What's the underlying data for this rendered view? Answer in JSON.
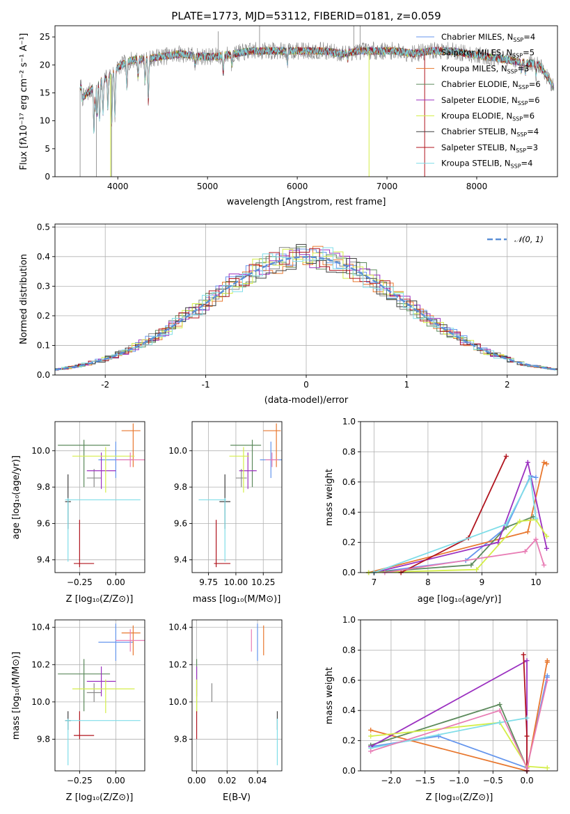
{
  "colors": {
    "Chabrier MILES": "#6495ed",
    "Salpeter MILES": "#8a8a8a",
    "Kroupa MILES": "#e8772e",
    "Chabrier ELODIE": "#5c8a5c",
    "Salpeter ELODIE": "#9b30c0",
    "Kroupa ELODIE": "#d4ee48",
    "Chabrier STELIB": "#3d3d3d",
    "Salpeter STELIB": "#b0141e",
    "Kroupa STELIB": "#7fdde8"
  },
  "chart_data": [
    {
      "id": "spectrum",
      "type": "line",
      "title": "PLATE=1773, MJD=53112, FIBERID=0181, z=0.059",
      "xlabel": "wavelength [Angstrom, rest frame]",
      "ylabel": "Flux [fλ10⁻¹⁷ erg cm⁻² s⁻¹ A⁻¹]",
      "xlim": [
        3300,
        8900
      ],
      "ylim": [
        0,
        27
      ],
      "xticks": [
        4000,
        5000,
        6000,
        7000,
        8000
      ],
      "yticks": [
        0,
        5,
        10,
        15,
        20,
        25
      ],
      "grid": false,
      "legend_position": "top-right",
      "legend": [
        {
          "key": "Chabrier MILES",
          "label": "Chabrier MILES, N",
          "sub": "SSP",
          "tail": "=4"
        },
        {
          "key": "Salpeter MILES",
          "label": "Salpeter MILES, N",
          "sub": "SSP",
          "tail": "=5"
        },
        {
          "key": "Kroupa MILES",
          "label": "Kroupa MILES, N",
          "sub": "SSP",
          "tail": "=3"
        },
        {
          "key": "Chabrier ELODIE",
          "label": "Chabrier ELODIE, N",
          "sub": "SSP",
          "tail": "=6"
        },
        {
          "key": "Salpeter ELODIE",
          "label": "Salpeter ELODIE, N",
          "sub": "SSP",
          "tail": "=6"
        },
        {
          "key": "Kroupa ELODIE",
          "label": "Kroupa ELODIE, N",
          "sub": "SSP",
          "tail": "=6"
        },
        {
          "key": "Chabrier STELIB",
          "label": "Chabrier STELIB, N",
          "sub": "SSP",
          "tail": "=4"
        },
        {
          "key": "Salpeter STELIB",
          "label": "Salpeter STELIB, N",
          "sub": "SSP",
          "tail": "=3"
        },
        {
          "key": "Kroupa STELIB",
          "label": "Kroupa STELIB, N",
          "sub": "SSP",
          "tail": "=4"
        }
      ],
      "continuum": {
        "x": [
          3600,
          3700,
          3800,
          3900,
          4000,
          4100,
          4200,
          4300,
          4500,
          4700,
          4900,
          5100,
          5300,
          5500,
          5700,
          5900,
          6100,
          6300,
          6500,
          6700,
          6900,
          7100,
          7300,
          7500,
          7700,
          7900,
          8100,
          8300,
          8500,
          8700,
          8860
        ],
        "y": [
          14.0,
          15.5,
          17.0,
          18.0,
          19.5,
          20.5,
          21.0,
          21.0,
          21.5,
          22.0,
          21.5,
          21.5,
          22.0,
          22.5,
          22.5,
          22.5,
          22.5,
          22.5,
          22.0,
          22.5,
          22.5,
          22.5,
          22.0,
          22.5,
          22.5,
          22.0,
          21.5,
          21.0,
          20.5,
          20.0,
          16.0
        ]
      },
      "absorption_lines": [
        {
          "x": 3734,
          "y": 8.0
        },
        {
          "x": 3750,
          "y": 12.0
        },
        {
          "x": 3770,
          "y": 11.0
        },
        {
          "x": 3798,
          "y": 10.0
        },
        {
          "x": 3835,
          "y": 11.5
        },
        {
          "x": 3889,
          "y": 12.5
        },
        {
          "x": 3933,
          "y": 9.5
        },
        {
          "x": 3968,
          "y": 10.5
        },
        {
          "x": 4101,
          "y": 16.0
        },
        {
          "x": 4226,
          "y": 18.0
        },
        {
          "x": 4304,
          "y": 17.0
        },
        {
          "x": 4340,
          "y": 13.5
        },
        {
          "x": 4861,
          "y": 20.0
        },
        {
          "x": 5175,
          "y": 18.5
        },
        {
          "x": 5270,
          "y": 20.0
        },
        {
          "x": 5890,
          "y": 20.5
        },
        {
          "x": 6563,
          "y": 21.0
        },
        {
          "x": 8498,
          "y": 19.0
        },
        {
          "x": 8542,
          "y": 18.5
        },
        {
          "x": 8662,
          "y": 18.5
        }
      ],
      "data_spikes": [
        {
          "x": 3580,
          "y": 0
        },
        {
          "x": 3762,
          "y": 0
        },
        {
          "x": 5120,
          "y": 26
        },
        {
          "x": 5580,
          "y": 27
        },
        {
          "x": 6630,
          "y": 27
        },
        {
          "x": 6700,
          "y": 27
        }
      ],
      "model_dropouts": [
        {
          "key": "Kroupa ELODIE",
          "x": 3920,
          "y": 0
        },
        {
          "key": "Kroupa ELODIE",
          "x": 6800,
          "y": 0
        },
        {
          "key": "Salpeter STELIB",
          "x": 7420,
          "y": 0
        },
        {
          "key": "Salpeter MILES",
          "x": 3930,
          "y": 0
        }
      ]
    },
    {
      "id": "residual-histogram",
      "type": "line",
      "xlabel": "(data-model)/error",
      "ylabel": "Normed distribution",
      "xlim": [
        -2.5,
        2.5
      ],
      "ylim": [
        0,
        0.51
      ],
      "xticks": [
        -2,
        -1,
        0,
        1,
        2
      ],
      "yticks": [
        0.0,
        0.1,
        0.2,
        0.3,
        0.4,
        0.5
      ],
      "grid": true,
      "legend_position": "top-right",
      "gaussian_label": "𝒩(0, 1)",
      "gaussian": {
        "mean": 0,
        "sigma": 1,
        "color": "#5b8fd6"
      },
      "bin_width": 0.1
    },
    {
      "id": "age-vs-Z",
      "type": "scatter",
      "xlabel": "Z [log₁₀(Z/Z⊙)]",
      "ylabel": "age  [log₁₀(age/yr)]",
      "xlim": [
        -0.42,
        0.2
      ],
      "ylim": [
        9.33,
        10.16
      ],
      "xticks": [
        -0.25,
        0.0
      ],
      "xtick_labels": [
        "−0.25",
        "0.00"
      ],
      "yticks": [
        9.4,
        9.6,
        9.8,
        10.0
      ],
      "grid": true
    },
    {
      "id": "age-vs-mass",
      "type": "scatter",
      "xlabel": "mass [log₁₀(M/M⊙)]",
      "ylabel": "",
      "xlim": [
        9.6,
        10.42
      ],
      "ylim": [
        9.33,
        10.16
      ],
      "xticks": [
        9.75,
        10.0,
        10.25
      ],
      "xtick_labels": [
        "9.75",
        "10.00",
        "10.25"
      ],
      "yticks": [
        9.4,
        9.6,
        9.8,
        10.0
      ],
      "grid": true
    },
    {
      "id": "weight-vs-age",
      "type": "line",
      "xlabel": "age  [log₁₀(age/yr)]",
      "ylabel": "mass weight",
      "xlim": [
        6.75,
        10.4
      ],
      "ylim": [
        0,
        1
      ],
      "xticks": [
        7,
        8,
        9,
        10
      ],
      "yticks": [
        0.0,
        0.2,
        0.4,
        0.6,
        0.8,
        1.0
      ],
      "grid": true
    },
    {
      "id": "mass-vs-Z",
      "type": "scatter",
      "xlabel": "Z [log₁₀(Z/Z⊙)]",
      "ylabel": "mass [log₁₀(M/M⊙)]",
      "xlim": [
        -0.42,
        0.2
      ],
      "ylim": [
        9.63,
        10.44
      ],
      "xticks": [
        -0.25,
        0.0
      ],
      "xtick_labels": [
        "−0.25",
        "0.00"
      ],
      "yticks": [
        9.8,
        10.0,
        10.2,
        10.4
      ],
      "grid": true
    },
    {
      "id": "mass-vs-EBV",
      "type": "scatter",
      "xlabel": "E(B-V)",
      "ylabel": "",
      "xlim": [
        -0.003,
        0.056
      ],
      "ylim": [
        9.63,
        10.44
      ],
      "xticks": [
        0.0,
        0.02,
        0.04
      ],
      "xtick_labels": [
        "0.00",
        "0.02",
        "0.04"
      ],
      "yticks": [
        9.8,
        10.0,
        10.2,
        10.4
      ],
      "grid": true
    },
    {
      "id": "weight-vs-Z",
      "type": "line",
      "xlabel": "Z [log₁₀(Z/Z⊙)]",
      "ylabel": "mass weight",
      "xlim": [
        -2.45,
        0.45
      ],
      "ylim": [
        0,
        1
      ],
      "xticks": [
        -2.0,
        -1.5,
        -1.0,
        -0.5,
        0.0
      ],
      "xtick_labels": [
        "−2.0",
        "−1.5",
        "−1.0",
        "−0.5",
        "0.0"
      ],
      "yticks": [
        0.0,
        0.2,
        0.4,
        0.6,
        0.8,
        1.0
      ],
      "grid": true
    }
  ],
  "fits": [
    {
      "key": "Chabrier MILES",
      "Z": 0.0,
      "Z_err": [
        0.12,
        0.12
      ],
      "age": 9.95,
      "age_err": [
        0.1,
        0.1
      ],
      "mass": 10.32,
      "mass_err": [
        0.1,
        0.1
      ],
      "ebv": 0.04,
      "ages": [
        7.0,
        8.7,
        9.45,
        9.9,
        10.0
      ],
      "age_weights": [
        0.0,
        0.08,
        0.3,
        0.64,
        0.63
      ],
      "Zs": [
        -2.3,
        -1.3,
        0.0,
        0.3,
        0.3
      ],
      "Z_weights": [
        0.16,
        0.23,
        0.02,
        0.63,
        0.62
      ]
    },
    {
      "key": "Salpeter MILES",
      "Z": -0.15,
      "Z_err": [
        0.05,
        0.05
      ],
      "age": 9.85,
      "age_err": [
        0.05,
        0.05
      ],
      "mass": 10.05,
      "mass_err": [
        0.05,
        0.05
      ],
      "ebv": 0.01,
      "ages": [],
      "age_weights": [],
      "Zs": [],
      "Z_weights": []
    },
    {
      "key": "Kroupa MILES",
      "Z": 0.12,
      "Z_err": [
        0.08,
        0.05
      ],
      "age": 10.11,
      "age_err": [
        0.2,
        0.04
      ],
      "mass": 10.37,
      "mass_err": [
        0.12,
        0.04
      ],
      "ebv": 0.044,
      "ages": [
        6.9,
        9.85,
        10.15,
        10.2
      ],
      "age_weights": [
        0.0,
        0.27,
        0.73,
        0.72
      ],
      "Zs": [
        -2.3,
        0.0,
        0.3,
        0.3
      ],
      "Z_weights": [
        0.27,
        0.0,
        0.73,
        0.72
      ]
    },
    {
      "key": "Chabrier ELODIE",
      "Z": -0.22,
      "Z_err": [
        0.18,
        0.18
      ],
      "age": 10.03,
      "age_err": [
        0.23,
        0.03
      ],
      "mass": 10.15,
      "mass_err": [
        0.2,
        0.08
      ],
      "ebv": 0.0,
      "ages": [
        6.9,
        8.8,
        9.45,
        9.95
      ],
      "age_weights": [
        0.0,
        0.05,
        0.3,
        0.37
      ],
      "Zs": [
        -2.3,
        -0.4,
        0.0
      ],
      "Z_weights": [
        0.17,
        0.44,
        0.02
      ]
    },
    {
      "key": "Salpeter ELODIE",
      "Z": -0.1,
      "Z_err": [
        0.1,
        0.1
      ],
      "age": 9.89,
      "age_err": [
        0.1,
        0.1
      ],
      "mass": 10.11,
      "mass_err": [
        0.08,
        0.08
      ],
      "ebv": 0.0,
      "ages": [
        7.0,
        9.3,
        9.85,
        10.2
      ],
      "age_weights": [
        0.0,
        0.2,
        0.73,
        0.16
      ],
      "Zs": [
        -2.3,
        0.0,
        0.0
      ],
      "Z_weights": [
        0.16,
        0.73,
        0.0
      ]
    },
    {
      "key": "Kroupa ELODIE",
      "Z": -0.07,
      "Z_err": [
        0.23,
        0.2
      ],
      "age": 9.97,
      "age_err": [
        0.2,
        0.05
      ],
      "mass": 10.07,
      "mass_err": [
        0.13,
        0.05
      ],
      "ebv": 0.0,
      "ages": [
        6.9,
        8.9,
        9.7,
        10.0,
        10.2
      ],
      "age_weights": [
        0.0,
        0.02,
        0.34,
        0.35,
        0.24
      ],
      "Zs": [
        -2.3,
        -0.4,
        0.0,
        0.3
      ],
      "Z_weights": [
        0.23,
        0.32,
        0.03,
        0.02
      ]
    },
    {
      "key": "Chabrier STELIB",
      "Z": -0.33,
      "Z_err": [
        0.02,
        0.02
      ],
      "age": 9.72,
      "age_err": [
        0.15,
        0.15
      ],
      "mass": 9.9,
      "mass_err": [
        0.05,
        0.05
      ],
      "ebv": 0.053,
      "ages": [],
      "age_weights": [],
      "Zs": [],
      "Z_weights": []
    },
    {
      "key": "Salpeter STELIB",
      "Z": -0.25,
      "Z_err": [
        0.04,
        0.1
      ],
      "age": 9.38,
      "age_err": [
        0.02,
        0.24
      ],
      "mass": 9.82,
      "mass_err": [
        0.02,
        0.13
      ],
      "ebv": 0.0,
      "ages": [
        7.5,
        8.75,
        9.45
      ],
      "age_weights": [
        0.0,
        0.23,
        0.77
      ],
      "Zs": [
        -0.05,
        0.0,
        0.0
      ],
      "Z_weights": [
        0.77,
        0.23,
        0.0
      ]
    },
    {
      "key": "Kroupa STELIB",
      "Z": -0.33,
      "Z_err": [
        0.02,
        0.5
      ],
      "age": 9.73,
      "age_err": [
        0.34,
        0.01
      ],
      "mass": 9.9,
      "mass_err": [
        0.24,
        0.01
      ],
      "ebv": 0.053,
      "ages": [
        7.0,
        9.45,
        9.9,
        10.0
      ],
      "age_weights": [
        0.0,
        0.32,
        0.63,
        0.36
      ],
      "Zs": [
        -2.3,
        -0.4,
        0.0
      ],
      "Z_weights": [
        0.15,
        0.32,
        0.35
      ]
    }
  ],
  "extra_fits": [
    {
      "color": "#e87cb4",
      "age": 9.95,
      "age_err": [
        0.04,
        0.04
      ],
      "mass": 10.33,
      "mass_err": [
        0.06,
        0.06
      ],
      "ebv": 0.036,
      "Z": 0.1,
      "Z_err": [
        0.1,
        0.1
      ],
      "ages": [
        7.2,
        9.8,
        10.0,
        10.15
      ],
      "age_weights": [
        0.0,
        0.14,
        0.22,
        0.05
      ],
      "Zs": [
        -2.3,
        -0.4,
        0.0,
        0.3
      ],
      "Z_weights": [
        0.13,
        0.4,
        0.02,
        0.6
      ]
    }
  ]
}
